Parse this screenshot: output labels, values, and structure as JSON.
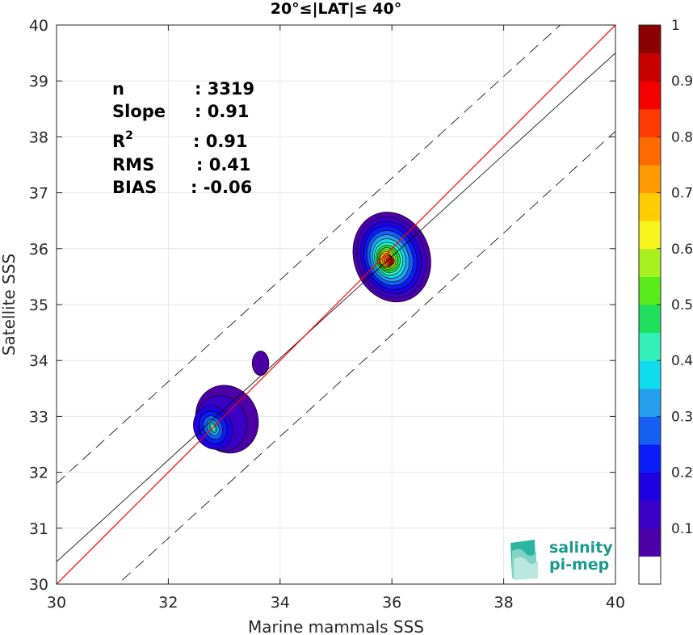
{
  "chart_data": {
    "type": "scatter",
    "title": "20°≤|LAT|≤ 40°",
    "xlabel": "Marine mammals SSS",
    "ylabel": "Satellite SSS",
    "xlim": [
      30,
      40
    ],
    "ylim": [
      30,
      40
    ],
    "x_ticks": [
      30,
      32,
      34,
      36,
      38,
      40
    ],
    "y_ticks": [
      30,
      31,
      32,
      33,
      34,
      35,
      36,
      37,
      38,
      39,
      40
    ],
    "grid": true,
    "stats": [
      {
        "label": "n",
        "value": ": 3319"
      },
      {
        "label": "Slope",
        "value": ": 0.91"
      },
      {
        "label": "R",
        "sup": "2",
        "value": ": 0.91"
      },
      {
        "label": "RMS",
        "value": ": 0.41"
      },
      {
        "label": "BIAS",
        "value": ": -0.06"
      }
    ],
    "one_to_one_line": {
      "color": "#ff0000"
    },
    "regression_line": {
      "slope": 0.91,
      "intercept": 3.1
    },
    "rms_bands": {
      "offset": 1.4,
      "style": "dashed"
    },
    "density_clusters": [
      {
        "center_x": 36.0,
        "center_y": 35.8,
        "peak_density": 1.0
      },
      {
        "center_x": 32.8,
        "center_y": 32.8,
        "peak_density": 0.45
      },
      {
        "center_x": 33.65,
        "center_y": 33.95,
        "peak_density": 0.1
      }
    ],
    "colorbar": {
      "range": [
        0,
        1
      ],
      "ticks": [
        "0.1",
        "0.2",
        "0.3",
        "0.4",
        "0.5",
        "0.6",
        "0.7",
        "0.8",
        "0.9",
        "1"
      ],
      "colormap": "jet"
    }
  },
  "logo": {
    "line1": "salinity",
    "line2": "pi-mep"
  }
}
